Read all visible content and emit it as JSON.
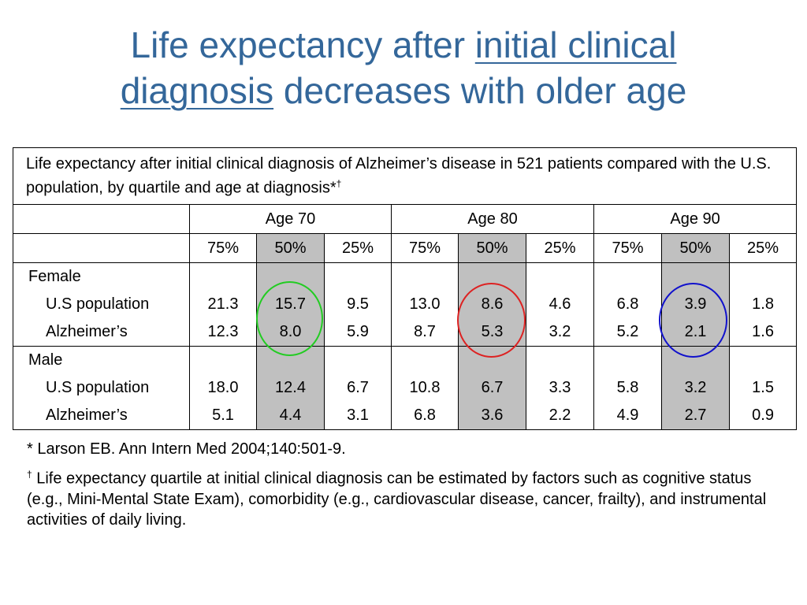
{
  "slide": {
    "title_part1": "Life expectancy after ",
    "title_link1": "initial clinical",
    "title_link2": "diagnosis",
    "title_part2": " decreases with older age"
  },
  "table": {
    "caption": "Life expectancy after initial clinical diagnosis of Alzheimer’s disease in 521 patients compared with the U.S. population, by quartile and age at diagnosis*",
    "caption_sup": "†",
    "age_groups": [
      "Age 70",
      "Age 80",
      "Age 90"
    ],
    "quartiles": [
      "75%",
      "50%",
      "25%",
      "75%",
      "50%",
      "25%",
      "75%",
      "50%",
      "25%"
    ],
    "groups": [
      {
        "label": "Female",
        "rows": [
          {
            "label": "U.S population",
            "values": [
              "21.3",
              "15.7",
              "9.5",
              "13.0",
              "8.6",
              "4.6",
              "6.8",
              "3.9",
              "1.8"
            ]
          },
          {
            "label": "Alzheimer’s",
            "values": [
              "12.3",
              "8.0",
              "5.9",
              "8.7",
              "5.3",
              "3.2",
              "5.2",
              "2.1",
              "1.6"
            ]
          }
        ]
      },
      {
        "label": "Male",
        "rows": [
          {
            "label": "U.S population",
            "values": [
              "18.0",
              "12.4",
              "6.7",
              "10.8",
              "6.7",
              "3.3",
              "5.8",
              "3.2",
              "1.5"
            ]
          },
          {
            "label": "Alzheimer’s",
            "values": [
              "5.1",
              "4.4",
              "3.1",
              "6.8",
              "3.6",
              "2.2",
              "4.9",
              "2.7",
              "0.9"
            ]
          }
        ]
      }
    ],
    "highlight_colors": [
      "#22cc22",
      "#dd2222",
      "#1111cc"
    ],
    "shade_color": "#c0c0c0"
  },
  "footnotes": {
    "note1": "* Larson EB. Ann Intern Med 2004;140:501-9.",
    "note2_mark": "†",
    "note2": " Life expectancy quartile at initial clinical diagnosis can be estimated by factors such as cognitive status (e.g., Mini-Mental State Exam), comorbidity (e.g., cardiovascular disease, cancer, frailty), and instrumental activities of daily living."
  }
}
